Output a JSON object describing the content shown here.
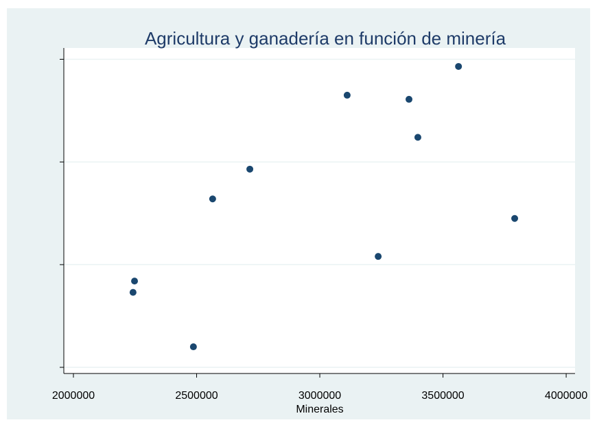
{
  "chart_data": {
    "type": "scatter",
    "title": "Agricultura y ganadería en función de  minería",
    "x_label": "Minerales",
    "series": [
      {
        "color": "#1a476f",
        "x": [
          3563000,
          3111000,
          3362000,
          3398000,
          2716000,
          2565000,
          3791000,
          3237000,
          2248000,
          2242000,
          2487000
        ],
        "values": [
          2.93,
          2.65,
          2.61,
          2.24,
          1.93,
          1.64,
          1.45,
          1.08,
          0.84,
          0.73,
          0.2
        ]
      }
    ],
    "xlim": [
      1961000,
      4036000
    ],
    "xticks": [
      2000000,
      2500000,
      3000000,
      3500000,
      4000000
    ],
    "ylim": [
      -0.06,
      3.11
    ],
    "yticks": [
      0,
      1,
      2,
      3
    ],
    "grid": true
  }
}
